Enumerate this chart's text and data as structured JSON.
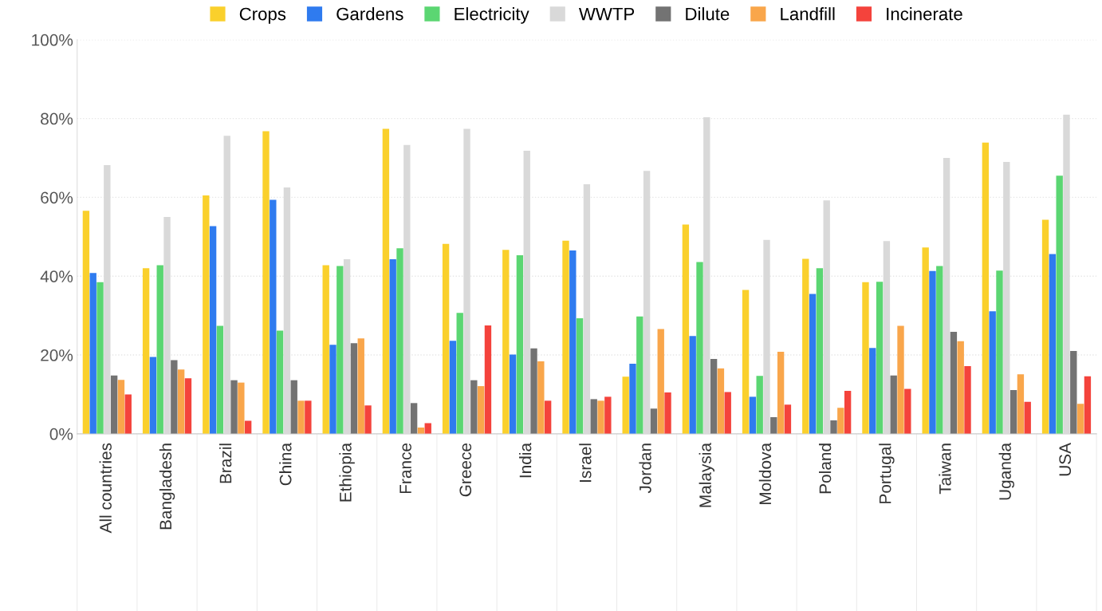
{
  "chart_data": {
    "type": "bar",
    "categories": [
      "All countries",
      "Bangladesh",
      "Brazil",
      "China",
      "Ethiopia",
      "France",
      "Greece",
      "India",
      "Israel",
      "Jordan",
      "Malaysia",
      "Moldova",
      "Poland",
      "Portugal",
      "Taiwan",
      "Uganda",
      "USA"
    ],
    "series": [
      {
        "name": "Crops",
        "color": "#fad02c",
        "values": [
          56.6,
          42.0,
          60.5,
          76.8,
          42.8,
          77.4,
          48.2,
          46.7,
          49.0,
          14.5,
          53.1,
          36.5,
          44.4,
          38.5,
          47.3,
          73.9,
          54.3
        ]
      },
      {
        "name": "Gardens",
        "color": "#2f7bef",
        "values": [
          40.8,
          19.5,
          52.7,
          59.4,
          22.6,
          44.3,
          23.6,
          20.1,
          46.5,
          17.8,
          24.8,
          9.4,
          35.5,
          21.8,
          41.3,
          31.1,
          45.6
        ]
      },
      {
        "name": "Electricity",
        "color": "#5bd672",
        "values": [
          38.5,
          42.8,
          27.4,
          26.2,
          42.6,
          47.1,
          30.7,
          45.3,
          29.3,
          29.8,
          43.6,
          14.7,
          42.0,
          38.6,
          42.6,
          41.4,
          65.5
        ]
      },
      {
        "name": "WWTP",
        "color": "#d9d9d9",
        "values": [
          68.2,
          55.0,
          75.6,
          62.5,
          44.3,
          73.3,
          77.4,
          71.8,
          63.3,
          66.7,
          80.3,
          49.2,
          59.2,
          48.9,
          70.0,
          69.0,
          81.0
        ]
      },
      {
        "name": "Dilute",
        "color": "#737373",
        "values": [
          14.8,
          18.7,
          13.6,
          13.6,
          23.0,
          7.8,
          13.6,
          21.7,
          8.8,
          6.4,
          19.0,
          4.2,
          3.4,
          14.8,
          25.9,
          11.1,
          21.0
        ]
      },
      {
        "name": "Landfill",
        "color": "#f9a64b",
        "values": [
          13.7,
          16.3,
          13.0,
          8.4,
          24.2,
          1.6,
          12.1,
          18.4,
          8.4,
          26.6,
          16.6,
          20.8,
          6.6,
          27.4,
          23.5,
          15.1,
          7.6
        ]
      },
      {
        "name": "Incinerate",
        "color": "#f4433c",
        "values": [
          10.0,
          14.1,
          3.3,
          8.4,
          7.2,
          2.7,
          27.5,
          8.4,
          9.4,
          10.5,
          10.6,
          7.4,
          10.9,
          11.4,
          17.2,
          8.1,
          14.6
        ]
      }
    ],
    "ylim": [
      0,
      100
    ],
    "yticks": [
      {
        "value": 0,
        "label": "0%"
      },
      {
        "value": 20,
        "label": "20%"
      },
      {
        "value": 40,
        "label": "40%"
      },
      {
        "value": 60,
        "label": "60%"
      },
      {
        "value": 80,
        "label": "80%"
      },
      {
        "value": 100,
        "label": "100%"
      }
    ],
    "grid": "y",
    "legend": "top"
  }
}
